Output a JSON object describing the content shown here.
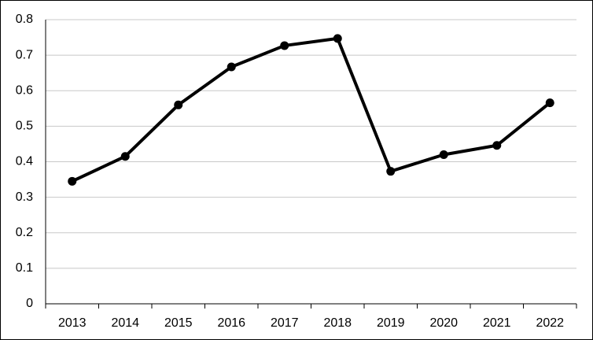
{
  "chart_data": {
    "type": "line",
    "categories": [
      "2013",
      "2014",
      "2015",
      "2016",
      "2017",
      "2018",
      "2019",
      "2020",
      "2021",
      "2022"
    ],
    "series": [
      {
        "color": "#000000",
        "values": [
          0.345,
          0.415,
          0.56,
          0.667,
          0.727,
          0.747,
          0.373,
          0.42,
          0.446,
          0.566
        ]
      }
    ],
    "ylim": [
      0,
      0.8
    ],
    "yticks": [
      0,
      0.1,
      0.2,
      0.3,
      0.4,
      0.5,
      0.6,
      0.7,
      0.8
    ],
    "grid": true
  }
}
